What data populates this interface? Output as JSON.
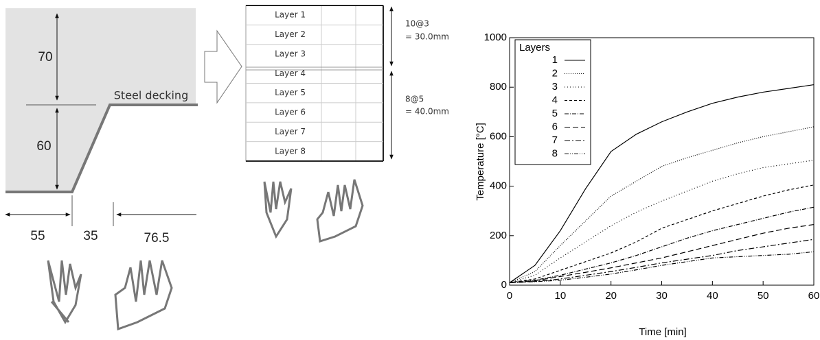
{
  "profile": {
    "heights": [
      "70",
      "60"
    ],
    "label": "Steel decking",
    "widths": [
      "55",
      "35",
      "76.5"
    ]
  },
  "layers": {
    "rows": [
      "Layer 1",
      "Layer 2",
      "Layer 3",
      "Layer 4",
      "Layer 5",
      "Layer 6",
      "Layer 7",
      "Layer 8"
    ],
    "groups": [
      {
        "spacing": "10@3",
        "total": "= 30.0mm"
      },
      {
        "spacing": "8@5",
        "total": "= 40.0mm"
      }
    ]
  },
  "chart_data": {
    "type": "line",
    "x_label": "Time [min]",
    "y_label": "Temperature [°C]",
    "legend_title": "Layers",
    "legend": "upper left",
    "x": [
      0,
      5,
      10,
      15,
      20,
      25,
      30,
      35,
      40,
      45,
      50,
      55,
      60
    ],
    "xlim": [
      0,
      60
    ],
    "xticks": [
      0,
      10,
      20,
      30,
      40,
      50,
      60
    ],
    "ylim": [
      0,
      1000
    ],
    "yticks": [
      0,
      200,
      400,
      600,
      800,
      1000
    ],
    "series": [
      {
        "name": "1",
        "color": "#000000",
        "dash": "none",
        "values": [
          10,
          80,
          220,
          390,
          540,
          610,
          660,
          700,
          735,
          760,
          780,
          795,
          810
        ]
      },
      {
        "name": "2",
        "color": "#000000",
        "dash": "1 2",
        "values": [
          10,
          55,
          160,
          260,
          360,
          420,
          480,
          515,
          545,
          575,
          600,
          620,
          640
        ]
      },
      {
        "name": "3",
        "color": "#000000",
        "dash": "1 3",
        "values": [
          10,
          40,
          110,
          175,
          240,
          295,
          340,
          380,
          420,
          450,
          475,
          490,
          505
        ]
      },
      {
        "name": "4",
        "color": "#000000",
        "dash": "4 3",
        "values": [
          10,
          25,
          60,
          95,
          130,
          175,
          230,
          265,
          300,
          330,
          360,
          385,
          405
        ]
      },
      {
        "name": "5",
        "color": "#000000",
        "dash": "6 2 1 2",
        "values": [
          10,
          20,
          40,
          65,
          90,
          120,
          155,
          190,
          220,
          245,
          270,
          295,
          315
        ]
      },
      {
        "name": "6",
        "color": "#000000",
        "dash": "8 4",
        "values": [
          10,
          18,
          35,
          52,
          70,
          90,
          110,
          135,
          160,
          185,
          210,
          230,
          245
        ]
      },
      {
        "name": "7",
        "color": "#000000",
        "dash": "8 3 2 3",
        "values": [
          10,
          15,
          25,
          40,
          55,
          72,
          90,
          105,
          120,
          140,
          155,
          170,
          185
        ]
      },
      {
        "name": "8",
        "color": "#000000",
        "dash": "6 2 1 2 1 2",
        "values": [
          10,
          14,
          20,
          32,
          45,
          62,
          80,
          95,
          110,
          115,
          120,
          125,
          135
        ]
      }
    ]
  }
}
